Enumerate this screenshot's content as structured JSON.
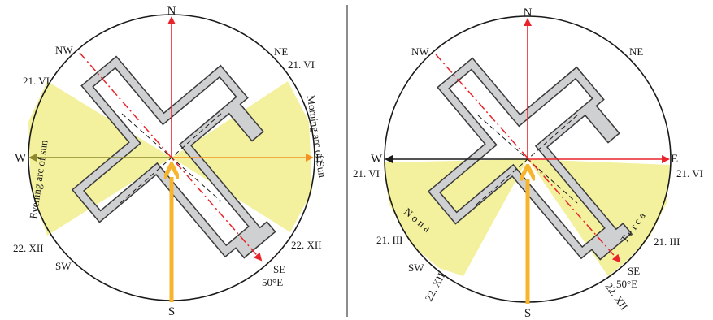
{
  "left": {
    "compass": {
      "n": "N",
      "s": "S",
      "e": "E",
      "w": "W",
      "ne": "NE",
      "nw": "NW",
      "se": "SE",
      "sw": "SW"
    },
    "azimuth": "50°E",
    "dates": {
      "june_east": "21. VI",
      "june_west": "21. VI",
      "dec_east": "22. XII",
      "dec_west": "22. XII"
    },
    "arcs": {
      "evening": "Evening arc of sun",
      "morning": "Morning arc of Sun"
    }
  },
  "right": {
    "compass": {
      "n": "N",
      "s": "S",
      "e": "E",
      "w": "W",
      "ne": "NE",
      "nw": "NW",
      "se": "SE",
      "sw": "SW"
    },
    "azimuth": "50°E",
    "dates": {
      "june_east": "21. VI",
      "june_west": "21. VI",
      "march_east": "21. III",
      "march_west": "21. III",
      "dec_east": "22. XII",
      "dec_west": "22. XII"
    },
    "arcs": {
      "nona": "N o n a",
      "terca": "T e r c a"
    }
  },
  "colors": {
    "sector": "#f1ef8c",
    "building": "#cfd0d2",
    "red_axis": "#e8242a",
    "orange_axis": "#f39221",
    "arrow_yellow": "#f6b52d",
    "olive": "#8c8a2a",
    "ink": "#1a1a1a"
  }
}
